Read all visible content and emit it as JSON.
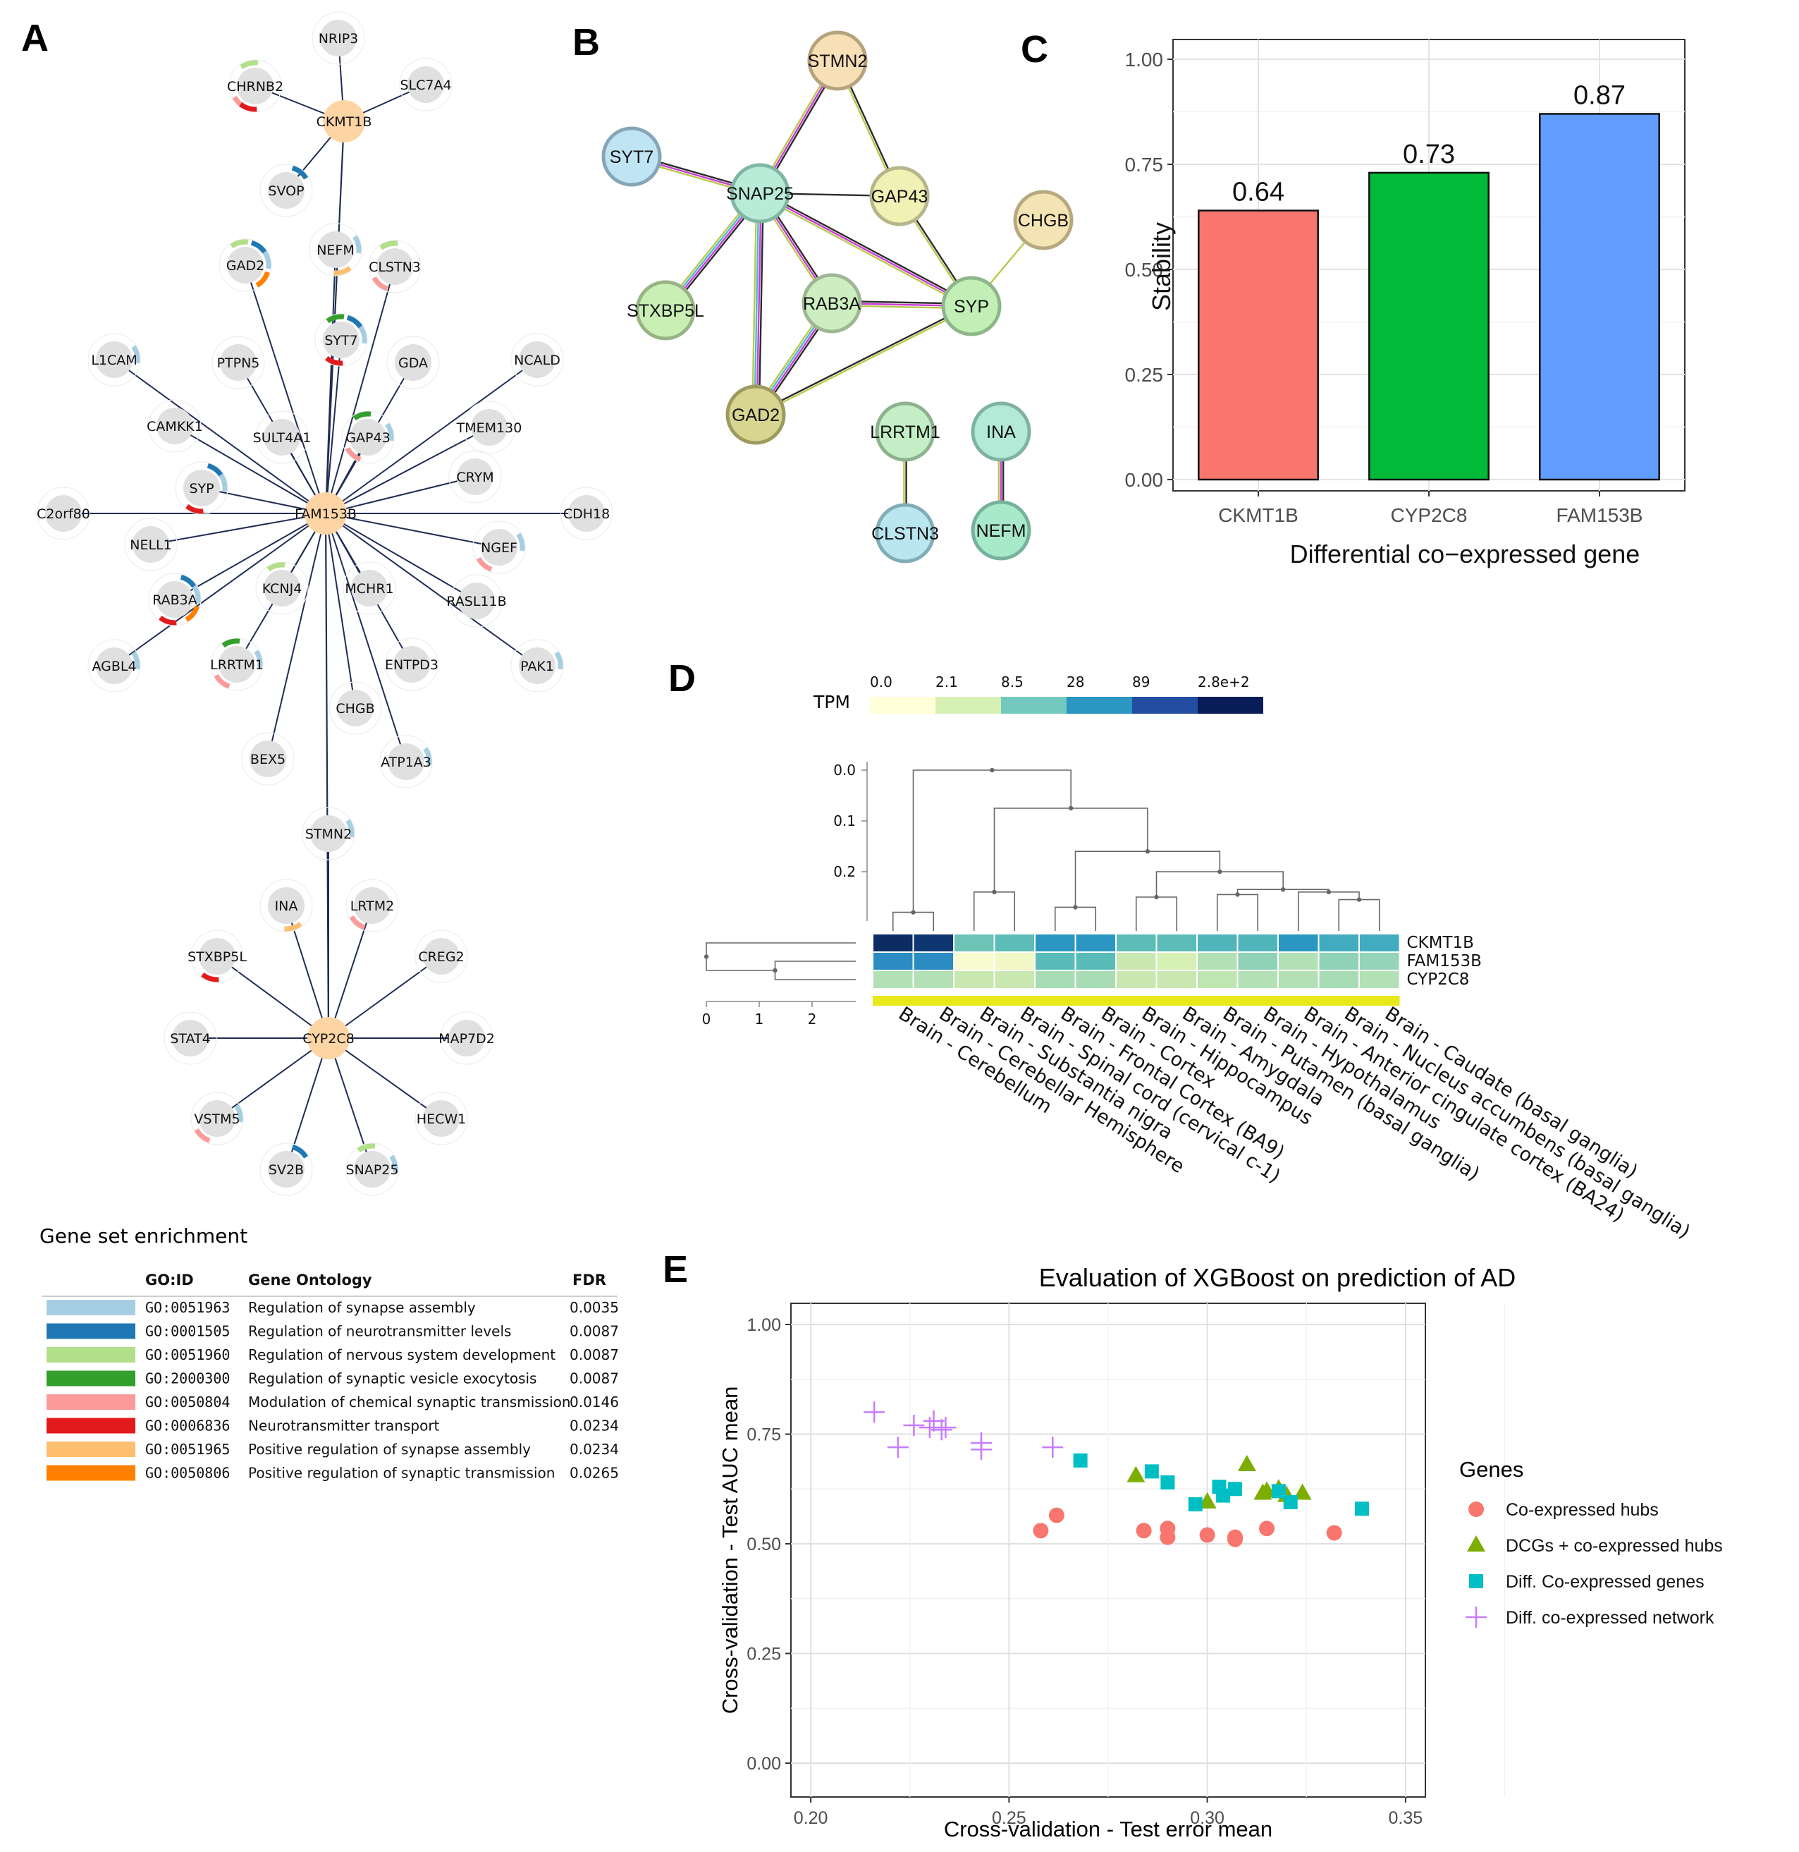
{
  "panels": {
    "A": "A",
    "B": "B",
    "C": "C",
    "D": "D",
    "E": "E"
  },
  "colors": {
    "hub": "#fdd4a4",
    "gene": "#e0e0e0",
    "edge": "#1f2d55",
    "go_light_blue": "#a6cee3",
    "go_blue": "#1f78b4",
    "go_light_green": "#b2df8a",
    "go_green": "#33a02c",
    "go_pink": "#fb9a99",
    "go_red": "#e31a1c",
    "go_light_orange": "#fdbf6f",
    "go_orange": "#ff7f00"
  },
  "network_a": {
    "hubs": [
      "CKMT1B",
      "FAM153B",
      "CYP2C8"
    ],
    "nodes": [
      {
        "id": "NRIP3",
        "hub": "CKMT1B"
      },
      {
        "id": "CHRNB2",
        "hub": "CKMT1B",
        "arcs": [
          "go_light_green",
          "go_pink",
          "go_red"
        ]
      },
      {
        "id": "SLC7A4",
        "hub": "CKMT1B"
      },
      {
        "id": "SVOP",
        "hub": "CKMT1B",
        "arcs": [
          "go_blue"
        ]
      },
      {
        "id": "NEFM",
        "hub": "FAM153B",
        "arcs": [
          "go_light_blue",
          "go_light_orange"
        ]
      },
      {
        "id": "GAD2",
        "hub": "FAM153B",
        "arcs": [
          "go_light_green",
          "go_blue",
          "go_light_blue",
          "go_orange"
        ]
      },
      {
        "id": "CLSTN3",
        "hub": "FAM153B",
        "arcs": [
          "go_green",
          "go_light_green",
          "go_pink"
        ]
      },
      {
        "id": "SYT7",
        "hub": "FAM153B",
        "arcs": [
          "go_green",
          "go_blue",
          "go_light_blue",
          "go_red"
        ]
      },
      {
        "id": "L1CAM",
        "hub": "FAM153B",
        "arcs": [
          "go_light_blue"
        ]
      },
      {
        "id": "PTPN5",
        "hub": "FAM153B"
      },
      {
        "id": "GDA",
        "hub": "FAM153B"
      },
      {
        "id": "NCALD",
        "hub": "FAM153B"
      },
      {
        "id": "CAMKK1",
        "hub": "FAM153B"
      },
      {
        "id": "SULT4A1",
        "hub": "FAM153B"
      },
      {
        "id": "GAP43",
        "hub": "FAM153B",
        "arcs": [
          "go_green",
          "go_light_blue",
          "go_pink"
        ]
      },
      {
        "id": "TMEM130",
        "hub": "FAM153B"
      },
      {
        "id": "SYP",
        "hub": "FAM153B",
        "arcs": [
          "go_blue",
          "go_light_blue",
          "go_red"
        ]
      },
      {
        "id": "CRYM",
        "hub": "FAM153B"
      },
      {
        "id": "C2orf80",
        "hub": "FAM153B"
      },
      {
        "id": "CDH18",
        "hub": "FAM153B"
      },
      {
        "id": "NELL1",
        "hub": "FAM153B"
      },
      {
        "id": "NGEF",
        "hub": "FAM153B",
        "arcs": [
          "go_light_blue",
          "go_pink"
        ]
      },
      {
        "id": "RAB3A",
        "hub": "FAM153B",
        "arcs": [
          "go_blue",
          "go_light_blue",
          "go_red",
          "go_orange"
        ]
      },
      {
        "id": "KCNJ4",
        "hub": "FAM153B",
        "arcs": [
          "go_light_green"
        ]
      },
      {
        "id": "MCHR1",
        "hub": "FAM153B"
      },
      {
        "id": "RASL11B",
        "hub": "FAM153B"
      },
      {
        "id": "AGBL4",
        "hub": "FAM153B",
        "arcs": [
          "go_light_blue"
        ]
      },
      {
        "id": "LRRTM1",
        "hub": "FAM153B",
        "arcs": [
          "go_green",
          "go_light_blue",
          "go_pink"
        ]
      },
      {
        "id": "ENTPD3",
        "hub": "FAM153B"
      },
      {
        "id": "PAK1",
        "hub": "FAM153B",
        "arcs": [
          "go_light_blue"
        ]
      },
      {
        "id": "CHGB",
        "hub": "FAM153B"
      },
      {
        "id": "BEX5",
        "hub": "FAM153B"
      },
      {
        "id": "ATP1A3",
        "hub": "FAM153B",
        "arcs": [
          "go_light_blue"
        ]
      },
      {
        "id": "STMN2",
        "hub": "CYP2C8",
        "arcs": [
          "go_light_blue"
        ]
      },
      {
        "id": "INA",
        "hub": "CYP2C8",
        "arcs": [
          "go_light_orange"
        ]
      },
      {
        "id": "LRTM2",
        "hub": "CYP2C8",
        "arcs": [
          "go_pink"
        ]
      },
      {
        "id": "STXBP5L",
        "hub": "CYP2C8",
        "arcs": [
          "go_red"
        ]
      },
      {
        "id": "CREG2",
        "hub": "CYP2C8"
      },
      {
        "id": "STAT4",
        "hub": "CYP2C8"
      },
      {
        "id": "MAP7D2",
        "hub": "CYP2C8"
      },
      {
        "id": "VSTM5",
        "hub": "CYP2C8",
        "arcs": [
          "go_light_blue",
          "go_pink"
        ]
      },
      {
        "id": "HECW1",
        "hub": "CYP2C8"
      },
      {
        "id": "SV2B",
        "hub": "CYP2C8",
        "arcs": [
          "go_blue"
        ]
      },
      {
        "id": "SNAP25",
        "hub": "CYP2C8",
        "arcs": [
          "go_light_green",
          "go_light_blue"
        ]
      }
    ]
  },
  "network_b": {
    "nodes": [
      "STMN2",
      "SYT7",
      "SNAP25",
      "GAP43",
      "CHGB",
      "STXBP5L",
      "RAB3A",
      "SYP",
      "GAD2",
      "LRRTM1",
      "INA",
      "CLSTN3",
      "NEFM"
    ]
  },
  "enrichment": {
    "title": "Gene set enrichment",
    "headers": {
      "go_id": "GO:ID",
      "ontology": "Gene Ontology",
      "fdr": "FDR"
    },
    "rows": [
      {
        "color": "#a6cee3",
        "go_id": "GO:0051963",
        "ontology": "Regulation of synapse assembly",
        "fdr": "0.0035"
      },
      {
        "color": "#1f78b4",
        "go_id": "GO:0001505",
        "ontology": "Regulation of neurotransmitter levels",
        "fdr": "0.0087"
      },
      {
        "color": "#b2df8a",
        "go_id": "GO:0051960",
        "ontology": "Regulation of nervous system development",
        "fdr": "0.0087"
      },
      {
        "color": "#33a02c",
        "go_id": "GO:2000300",
        "ontology": "Regulation of synaptic vesicle exocytosis",
        "fdr": "0.0087"
      },
      {
        "color": "#fb9a99",
        "go_id": "GO:0050804",
        "ontology": "Modulation of chemical synaptic transmission",
        "fdr": "0.0146"
      },
      {
        "color": "#e31a1c",
        "go_id": "GO:0006836",
        "ontology": "Neurotransmitter transport",
        "fdr": "0.0234"
      },
      {
        "color": "#fdbf6f",
        "go_id": "GO:0051965",
        "ontology": "Positive regulation of synapse assembly",
        "fdr": "0.0234"
      },
      {
        "color": "#ff7f00",
        "go_id": "GO:0050806",
        "ontology": "Positive regulation of synaptic transmission",
        "fdr": "0.0265"
      }
    ]
  },
  "chart_data": [
    {
      "type": "bar",
      "categories": [
        "CKMT1B",
        "CYP2C8",
        "FAM153B"
      ],
      "values": [
        0.64,
        0.73,
        0.87
      ],
      "value_labels": [
        "0.64",
        "0.73",
        "0.87"
      ],
      "colors": [
        "#f8766d",
        "#00ba38",
        "#619cff"
      ],
      "xlabel": "Differential co−expressed gene",
      "ylabel": "Stability",
      "ylim": [
        0,
        1
      ],
      "yticks": [
        "0.00",
        "0.25",
        "0.50",
        "0.75",
        "1.00"
      ],
      "grid": true
    },
    {
      "type": "heatmap",
      "legend_title": "TPM",
      "legend_breaks": [
        "0.0",
        "2.1",
        "8.5",
        "28",
        "89",
        "2.8e+2"
      ],
      "legend_colors": [
        "#ffffd9",
        "#d6efb3",
        "#73c9bd",
        "#2a96c1",
        "#234da0",
        "#081d58"
      ],
      "rows": [
        "CKMT1B",
        "FAM153B",
        "CYP2C8"
      ],
      "columns": [
        "Brain - Cerebellum",
        "Brain - Cerebellar Hemisphere",
        "Brain - Substantia nigra",
        "Brain - Spinal cord (cervical c-1)",
        "Brain - Frontal Cortex (BA9)",
        "Brain - Cortex",
        "Brain - Hippocampus",
        "Brain - Amygdala",
        "Brain - Putamen (basal ganglia)",
        "Brain - Hypothalamus",
        "Brain - Anterior cingulate cortex (BA24)",
        "Brain - Nucleus accumbens (basal ganglia)",
        "Brain - Caudate (basal ganglia)"
      ],
      "col_dendro_ticks": [
        "0.0",
        "0.1",
        "0.2"
      ],
      "row_dendro_ticks": [
        "0",
        "1",
        "2"
      ],
      "cell_colors": [
        [
          "#0c2c63",
          "#0e3670",
          "#6dc3b6",
          "#5cbcb7",
          "#2a96c1",
          "#2a96c1",
          "#5cbcb7",
          "#5cbcb7",
          "#4fb5bb",
          "#4fb5bb",
          "#2a96c1",
          "#41abc0",
          "#41abc0"
        ],
        [
          "#2a8cc0",
          "#2a8cc0",
          "#f8fbd0",
          "#f1f8c5",
          "#59bcb8",
          "#59bcb8",
          "#c9e8b1",
          "#d6efb3",
          "#b3e0b4",
          "#8fd2b7",
          "#b3e0b4",
          "#8fd2b7",
          "#96d4b8"
        ],
        [
          "#b3e0b4",
          "#b3e0b4",
          "#c9e8b1",
          "#c9e8b1",
          "#a8dcb4",
          "#a8dcb4",
          "#c9e8b1",
          "#c9e8b1",
          "#bfe5b2",
          "#b3e0b4",
          "#b3e0b4",
          "#a8dcb4",
          "#b3e0b4"
        ]
      ]
    },
    {
      "type": "scatter",
      "title": "Evaluation of XGBoost on prediction of AD",
      "xlabel": "Cross-validation - Test error mean",
      "ylabel": "Cross-validation - Test AUC mean",
      "xlim": [
        0.195,
        0.355
      ],
      "ylim": [
        0,
        1
      ],
      "xticks": [
        "0.20",
        "0.25",
        "0.30",
        "0.35"
      ],
      "yticks": [
        "0.00",
        "0.25",
        "0.50",
        "0.75",
        "1.00"
      ],
      "legend_title": "Genes",
      "legend_position": "right",
      "series": [
        {
          "name": "Co-expressed hubs",
          "color": "#f8766d",
          "shape": "circle",
          "x": [
            0.258,
            0.262,
            0.284,
            0.29,
            0.29,
            0.3,
            0.307,
            0.307,
            0.315,
            0.332
          ],
          "y": [
            0.53,
            0.565,
            0.53,
            0.535,
            0.515,
            0.52,
            0.515,
            0.51,
            0.535,
            0.525
          ]
        },
        {
          "name": "DCGs + co-expressed hubs",
          "color": "#7cae00",
          "shape": "triangle",
          "x": [
            0.282,
            0.3,
            0.31,
            0.314,
            0.315,
            0.318,
            0.32,
            0.324
          ],
          "y": [
            0.655,
            0.595,
            0.68,
            0.615,
            0.62,
            0.625,
            0.61,
            0.615
          ]
        },
        {
          "name": "Diff. Co-expressed genes",
          "color": "#00bfc4",
          "shape": "square",
          "x": [
            0.268,
            0.286,
            0.29,
            0.297,
            0.303,
            0.304,
            0.307,
            0.318,
            0.321,
            0.339
          ],
          "y": [
            0.69,
            0.665,
            0.64,
            0.59,
            0.63,
            0.61,
            0.625,
            0.62,
            0.595,
            0.58
          ]
        },
        {
          "name": "Diff. co-expressed network",
          "color": "#c77cff",
          "shape": "plus",
          "x": [
            0.216,
            0.222,
            0.226,
            0.23,
            0.231,
            0.233,
            0.234,
            0.243,
            0.243,
            0.261
          ],
          "y": [
            0.8,
            0.72,
            0.77,
            0.765,
            0.78,
            0.76,
            0.765,
            0.73,
            0.715,
            0.72
          ]
        }
      ]
    }
  ]
}
